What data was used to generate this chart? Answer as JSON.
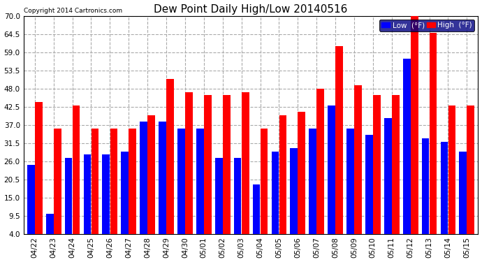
{
  "title": "Dew Point Daily High/Low 20140516",
  "copyright": "Copyright 2014 Cartronics.com",
  "dates": [
    "04/22",
    "04/23",
    "04/24",
    "04/25",
    "04/26",
    "04/27",
    "04/28",
    "04/29",
    "04/30",
    "05/01",
    "05/02",
    "05/03",
    "05/04",
    "05/05",
    "05/06",
    "05/07",
    "05/08",
    "05/09",
    "05/10",
    "05/11",
    "05/12",
    "05/13",
    "05/14",
    "05/15"
  ],
  "low_values": [
    25,
    10,
    27,
    28,
    28,
    29,
    38,
    38,
    36,
    36,
    27,
    27,
    19,
    29,
    30,
    36,
    43,
    36,
    34,
    39,
    57,
    33,
    32,
    29
  ],
  "high_values": [
    44,
    36,
    43,
    36,
    36,
    36,
    40,
    51,
    47,
    46,
    46,
    47,
    36,
    40,
    41,
    48,
    61,
    49,
    46,
    46,
    70,
    65,
    43,
    43
  ],
  "bar_color_low": "#0000ff",
  "bar_color_high": "#ff0000",
  "bg_color": "#ffffff",
  "grid_color": "#aaaaaa",
  "yticks": [
    4.0,
    9.5,
    15.0,
    20.5,
    26.0,
    31.5,
    37.0,
    42.5,
    48.0,
    53.5,
    59.0,
    64.5,
    70.0
  ],
  "ymin": 4.0,
  "ymax": 70.0,
  "legend_low_label": "Low  (°F)",
  "legend_high_label": "High  (°F)"
}
